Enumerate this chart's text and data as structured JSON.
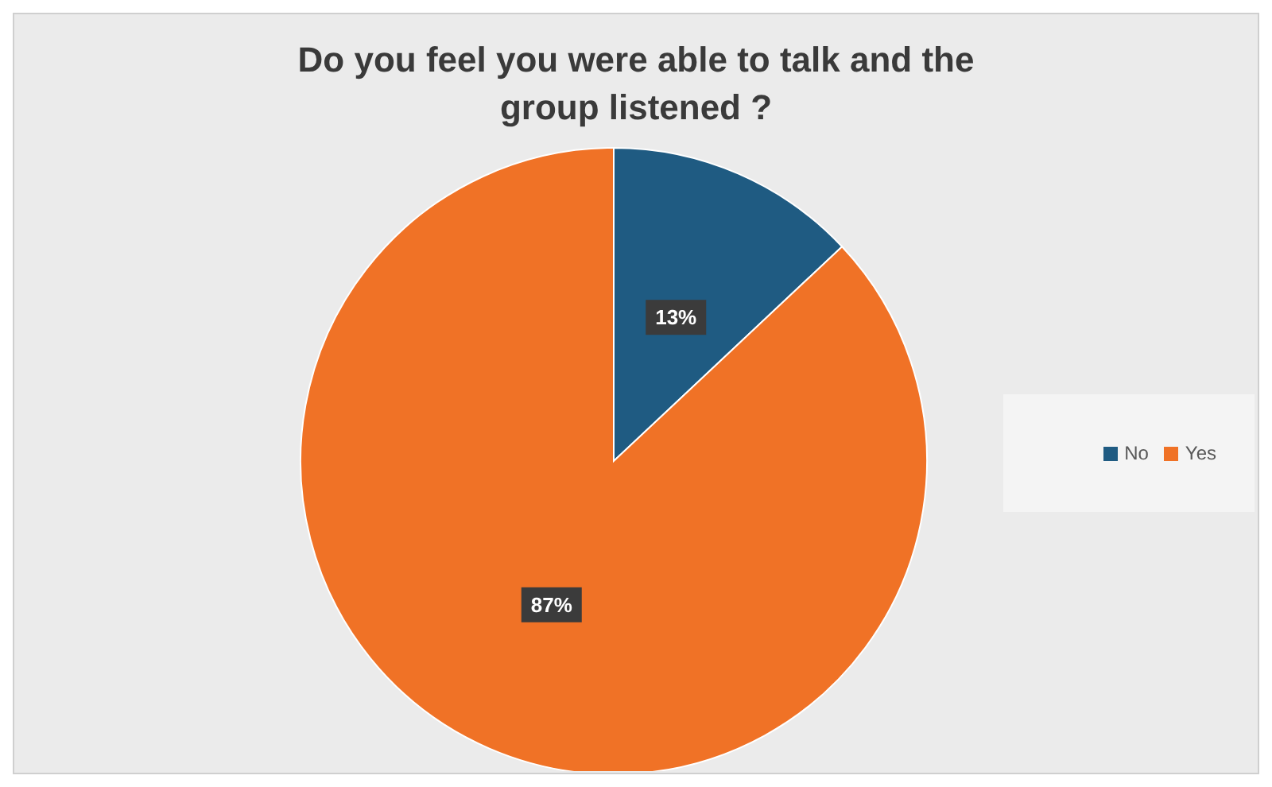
{
  "chart_data": {
    "type": "pie",
    "title": "Do you feel you were able to talk and the group listened ?",
    "categories": [
      "No",
      "Yes"
    ],
    "values": [
      13,
      87
    ],
    "colors": [
      "#1f5b82",
      "#f07226"
    ],
    "value_labels": [
      "13%",
      "87%"
    ],
    "legend": "right"
  }
}
